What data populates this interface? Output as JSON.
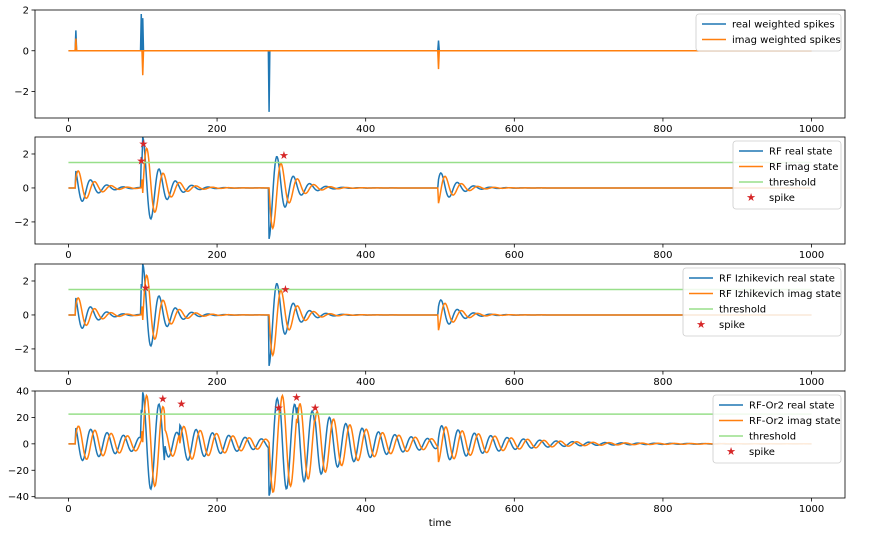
{
  "chart_data": [
    {
      "type": "line",
      "title": "",
      "xlabel": "",
      "ylabel": "",
      "xlim": [
        -45,
        1045
      ],
      "ylim": [
        -3.3,
        2.0
      ],
      "xticks": [
        0,
        200,
        400,
        600,
        800,
        1000
      ],
      "yticks": [
        -2,
        0,
        2
      ],
      "grid": false,
      "legend": "top-right",
      "series": [
        {
          "name": "real weighted spikes",
          "color": "#1f77b4",
          "kind": "impulses",
          "points": [
            [
              10,
              1.0
            ],
            [
              98,
              1.8
            ],
            [
              100,
              1.6
            ],
            [
              270,
              -3.0
            ],
            [
              498,
              0.5
            ]
          ]
        },
        {
          "name": "imag weighted spikes",
          "color": "#ff7f0e",
          "kind": "impulses",
          "points": [
            [
              10,
              0.6
            ],
            [
              100,
              -1.2
            ],
            [
              498,
              -0.9
            ]
          ]
        }
      ]
    },
    {
      "type": "line",
      "title": "",
      "xlabel": "",
      "ylabel": "",
      "xlim": [
        -45,
        1045
      ],
      "ylim": [
        -3.3,
        3.0
      ],
      "xticks": [
        0,
        200,
        400,
        600,
        800,
        1000
      ],
      "yticks": [
        -2,
        0,
        2
      ],
      "grid": false,
      "legend": "top-right",
      "signal": {
        "period": 22,
        "decay": 0.045,
        "amp_scale": 1.0
      },
      "inputs": [
        [
          10,
          1.0,
          0.6
        ],
        [
          98,
          1.8,
          0.0
        ],
        [
          100,
          1.6,
          -1.2
        ],
        [
          270,
          -3.0,
          0.0
        ],
        [
          498,
          0.5,
          -0.9
        ]
      ],
      "series": [
        {
          "name": "RF real state",
          "color": "#1f77b4"
        },
        {
          "name": "RF imag state",
          "color": "#ff7f0e"
        },
        {
          "name": "threshold",
          "color": "#98df8a",
          "value": 1.5
        },
        {
          "name": "spike",
          "color": "#d62728",
          "kind": "markers",
          "points": [
            [
              98,
              1.6
            ],
            [
              101,
              2.6
            ],
            [
              290,
              1.9
            ]
          ]
        }
      ]
    },
    {
      "type": "line",
      "title": "",
      "xlabel": "",
      "ylabel": "",
      "xlim": [
        -45,
        1045
      ],
      "ylim": [
        -3.3,
        3.0
      ],
      "xticks": [
        0,
        200,
        400,
        600,
        800,
        1000
      ],
      "yticks": [
        -2,
        0,
        2
      ],
      "grid": false,
      "legend": "top-right",
      "signal": {
        "period": 22,
        "decay": 0.045,
        "amp_scale": 1.0
      },
      "inputs": [
        [
          10,
          1.0,
          0.6
        ],
        [
          98,
          1.8,
          0.0
        ],
        [
          100,
          1.6,
          -1.2
        ],
        [
          270,
          -3.0,
          0.0
        ],
        [
          498,
          0.5,
          -0.9
        ]
      ],
      "series": [
        {
          "name": "RF Izhikevich real state",
          "color": "#1f77b4"
        },
        {
          "name": "RF Izhikevich imag state",
          "color": "#ff7f0e"
        },
        {
          "name": "threshold",
          "color": "#98df8a",
          "value": 1.5
        },
        {
          "name": "spike",
          "color": "#d62728",
          "kind": "markers",
          "points": [
            [
              104,
              1.6
            ],
            [
              292,
              1.5
            ]
          ]
        }
      ]
    },
    {
      "type": "line",
      "title": "",
      "xlabel": "time",
      "ylabel": "",
      "xlim": [
        -45,
        1045
      ],
      "ylim": [
        -41,
        40
      ],
      "xticks": [
        0,
        200,
        400,
        600,
        800,
        1000
      ],
      "yticks": [
        -40,
        -20,
        0,
        20,
        40
      ],
      "grid": false,
      "legend": "top-right",
      "signal": {
        "period": 22,
        "decay": 0.012,
        "amp_scale": 12.0
      },
      "inputs": [
        [
          10,
          1.0,
          0.6
        ],
        [
          98,
          1.8,
          0.0
        ],
        [
          100,
          1.6,
          -1.2
        ],
        [
          130,
          1.4,
          -0.8
        ],
        [
          150,
          0.9,
          -0.6
        ],
        [
          270,
          -3.0,
          0.0
        ],
        [
          285,
          1.2,
          -0.4
        ],
        [
          308,
          1.0,
          -0.7
        ],
        [
          332,
          0.6,
          -0.3
        ],
        [
          498,
          0.5,
          -0.9
        ]
      ],
      "series": [
        {
          "name": "RF-Or2 real state",
          "color": "#1f77b4"
        },
        {
          "name": "RF-Or2 imag state",
          "color": "#ff7f0e"
        },
        {
          "name": "threshold",
          "color": "#98df8a",
          "value": 22.5
        },
        {
          "name": "spike",
          "color": "#d62728",
          "kind": "markers",
          "points": [
            [
              127,
              34
            ],
            [
              152,
              30
            ],
            [
              283,
              27
            ],
            [
              307,
              35
            ],
            [
              332,
              27
            ]
          ]
        }
      ]
    }
  ]
}
